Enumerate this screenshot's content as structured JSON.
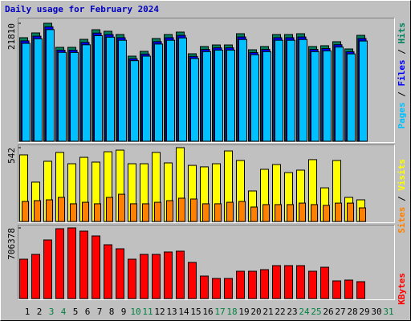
{
  "chart_data": [
    {
      "type": "bar",
      "title": "Daily usage for February 2024",
      "ylim": [
        0,
        21810
      ],
      "yticks": [
        21810
      ],
      "separator": " / ",
      "series": [
        {
          "name": "Hits",
          "color": "#00805c",
          "values": [
            19140,
            20030,
            21810,
            17360,
            17360,
            18840,
            20620,
            20330,
            19730,
            15730,
            16620,
            18990,
            19730,
            20180,
            16170,
            17510,
            17800,
            17800,
            19880,
            16910,
            17510,
            19730,
            19730,
            19880,
            17510,
            17660,
            18400,
            17060,
            19580,
            null,
            null
          ]
        },
        {
          "name": "Files",
          "color": "#0000ff",
          "values": [
            18560,
            19420,
            21150,
            16840,
            16830,
            18270,
            20000,
            19720,
            19140,
            15260,
            16120,
            18420,
            19140,
            19570,
            15680,
            16980,
            17270,
            17270,
            19280,
            16400,
            16980,
            19140,
            19140,
            19280,
            16980,
            17130,
            17850,
            16550,
            18990,
            null,
            null
          ]
        },
        {
          "name": "Pages",
          "color": "#00c0ff",
          "values": [
            18100,
            18950,
            20640,
            16430,
            16420,
            17830,
            19510,
            19240,
            18670,
            14890,
            15730,
            17970,
            18670,
            19100,
            15300,
            16570,
            16850,
            16850,
            18810,
            16000,
            16570,
            18670,
            18670,
            18810,
            16570,
            16710,
            17410,
            16150,
            18530,
            null,
            null
          ]
        }
      ]
    },
    {
      "type": "bar",
      "ylim": [
        0,
        542
      ],
      "yticks": [
        542
      ],
      "separator": " / ",
      "series": [
        {
          "name": "Visits",
          "color": "#ffff00",
          "values": [
            489,
            289,
            442,
            507,
            424,
            471,
            436,
            512,
            524,
            424,
            424,
            507,
            430,
            542,
            412,
            401,
            424,
            518,
            448,
            224,
            383,
            418,
            359,
            377,
            454,
            247,
            448,
            177,
            159,
            null,
            null
          ]
        },
        {
          "name": "Sites",
          "color": "#ff8000",
          "values": [
            147,
            153,
            159,
            177,
            130,
            141,
            130,
            177,
            200,
            130,
            130,
            141,
            153,
            171,
            165,
            130,
            130,
            141,
            147,
            106,
            124,
            124,
            124,
            135,
            124,
            118,
            135,
            135,
            100,
            null,
            null
          ]
        }
      ]
    },
    {
      "type": "bar",
      "ylim": [
        0,
        706378
      ],
      "yticks": [
        706378
      ],
      "categories": [
        "1",
        "2",
        "3",
        "4",
        "5",
        "6",
        "7",
        "8",
        "9",
        "10",
        "11",
        "12",
        "13",
        "14",
        "15",
        "16",
        "17",
        "18",
        "19",
        "20",
        "21",
        "22",
        "23",
        "24",
        "25",
        "26",
        "27",
        "28",
        "29",
        "30",
        "31"
      ],
      "label_colors": [
        "#000000",
        "#000000",
        "#008040",
        "#008040",
        "#000000",
        "#000000",
        "#000000",
        "#000000",
        "#000000",
        "#008040",
        "#008040",
        "#000000",
        "#000000",
        "#000000",
        "#000000",
        "#000000",
        "#008040",
        "#008040",
        "#000000",
        "#000000",
        "#000000",
        "#000000",
        "#000000",
        "#008040",
        "#008040",
        "#000000",
        "#000000",
        "#000000",
        "#000000",
        "#000000",
        "#008040"
      ],
      "series": [
        {
          "name": "KBytes",
          "color": "#ff0000",
          "values": [
            393323,
            441485,
            585971,
            698349,
            706378,
            674268,
            626106,
            537809,
            497674,
            393323,
            441485,
            441485,
            465566,
            473593,
            361215,
            224756,
            200675,
            200675,
            272918,
            272918,
            288972,
            329107,
            329107,
            329107,
            272918,
            313053,
            176594,
            184621,
            168567,
            null,
            null
          ]
        }
      ]
    }
  ]
}
